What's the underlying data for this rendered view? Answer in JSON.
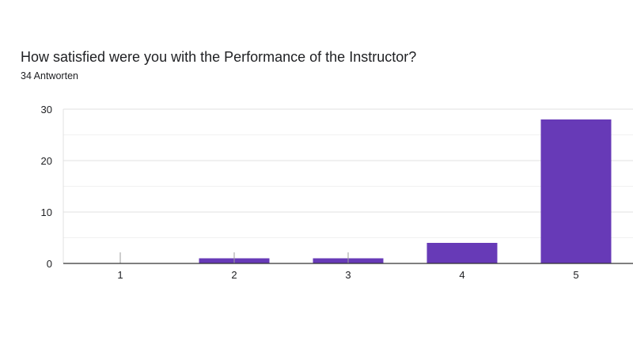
{
  "question": {
    "title": "How satisfied were you with the Performance of the Instructor?",
    "response_count": "34 Antworten"
  },
  "colors": {
    "bar": "#673ab7",
    "grid_major": "#e0e0e0",
    "grid_minor": "#f1f1f1",
    "axis": "#333333",
    "zero_tick": "#9e9e9e"
  },
  "chart_data": {
    "type": "bar",
    "categories": [
      "1",
      "2",
      "3",
      "4",
      "5"
    ],
    "values": [
      0,
      1,
      1,
      4,
      28
    ],
    "title": "How satisfied were you with the Performance of the Instructor?",
    "xlabel": "",
    "ylabel": "",
    "ylim": [
      0,
      30
    ],
    "yticks": [
      0,
      10,
      20,
      30
    ],
    "grid": true,
    "legend": "none"
  }
}
